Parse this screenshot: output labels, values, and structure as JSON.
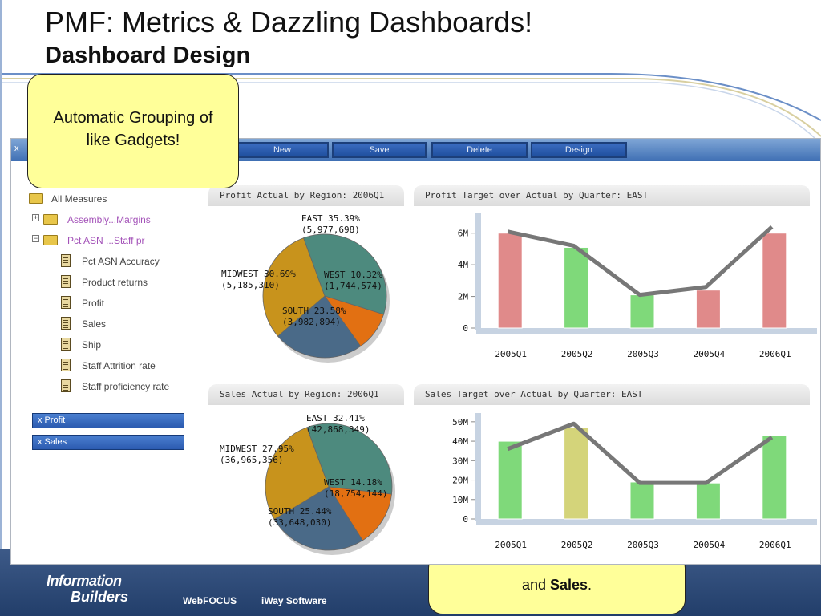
{
  "slide": {
    "title": "PMF: Metrics & Dazzling Dashboards!",
    "subtitle": "Dashboard Design"
  },
  "toolbar": {
    "close": "x",
    "buttons": [
      "New",
      "Save",
      "Delete",
      "Design"
    ]
  },
  "tree": {
    "root": "All Measures",
    "groups": [
      "Assembly...Margins",
      "Pct ASN ...Staff pr"
    ],
    "items": [
      "Pct ASN Accuracy",
      "Product returns",
      "Profit",
      "Sales",
      "Ship",
      "Staff Attrition rate",
      "Staff proficiency rate"
    ]
  },
  "selected": [
    "x Profit",
    "x Sales"
  ],
  "callouts": {
    "top": "Automatic Grouping of like Gadgets!",
    "bottom_prefix": "and ",
    "bottom_bold": "Sales",
    "bottom_suffix": "."
  },
  "footer": {
    "logo_line1": "Information",
    "logo_line2": "Builders",
    "products": [
      "WebFOCUS",
      "iWay Software"
    ]
  },
  "colors": {
    "east": "#4d8a7e",
    "midwest": "#c8931c",
    "west": "#e27012",
    "south": "#4a6a88",
    "bar_red": "#e08a8a",
    "bar_green": "#7fd97a",
    "bar_yellow": "#d4d47a",
    "line": "#777777"
  },
  "chart_data": [
    {
      "type": "pie",
      "title": "Profit Actual by Region: 2006Q1",
      "slices": [
        {
          "label": "EAST",
          "pct": "35.39%",
          "value": "(5,977,698)",
          "share": 35.39
        },
        {
          "label": "WEST",
          "pct": "10.32%",
          "value": "(1,744,574)",
          "share": 10.32
        },
        {
          "label": "SOUTH",
          "pct": "23.58%",
          "value": "(3,982,894)",
          "share": 23.58
        },
        {
          "label": "MIDWEST",
          "pct": "30.69%",
          "value": "(5,185,310)",
          "share": 30.69
        }
      ]
    },
    {
      "type": "bar",
      "title": "Profit Target over Actual by Quarter: EAST",
      "categories": [
        "2005Q1",
        "2005Q2",
        "2005Q3",
        "2005Q4",
        "2006Q1"
      ],
      "actual": [
        6000000,
        5100000,
        2100000,
        2400000,
        6000000
      ],
      "target": [
        6100000,
        5200000,
        2100000,
        2600000,
        6400000
      ],
      "bar_status": [
        "red",
        "green",
        "green",
        "red",
        "red"
      ],
      "yticks": [
        "0",
        "2M",
        "4M",
        "6M"
      ],
      "ylim": [
        0,
        7000000
      ]
    },
    {
      "type": "pie",
      "title": "Sales Actual by Region: 2006Q1",
      "slices": [
        {
          "label": "EAST",
          "pct": "32.41%",
          "value": "(42,868,349)",
          "share": 32.41
        },
        {
          "label": "WEST",
          "pct": "14.18%",
          "value": "(18,754,144)",
          "share": 14.18
        },
        {
          "label": "SOUTH",
          "pct": "25.44%",
          "value": "(33,648,030)",
          "share": 25.44
        },
        {
          "label": "MIDWEST",
          "pct": "27.95%",
          "value": "(36,965,356)",
          "share": 27.95
        }
      ]
    },
    {
      "type": "bar",
      "title": "Sales Target over Actual by Quarter: EAST",
      "categories": [
        "2005Q1",
        "2005Q2",
        "2005Q3",
        "2005Q4",
        "2006Q1"
      ],
      "actual": [
        40000000,
        47000000,
        19000000,
        18500000,
        43000000
      ],
      "target": [
        36000000,
        49000000,
        18500000,
        18500000,
        42000000
      ],
      "bar_status": [
        "green",
        "yellow",
        "green",
        "green",
        "green"
      ],
      "yticks": [
        "0",
        "10M",
        "20M",
        "30M",
        "40M",
        "50M"
      ],
      "ylim": [
        0,
        52000000
      ]
    }
  ]
}
